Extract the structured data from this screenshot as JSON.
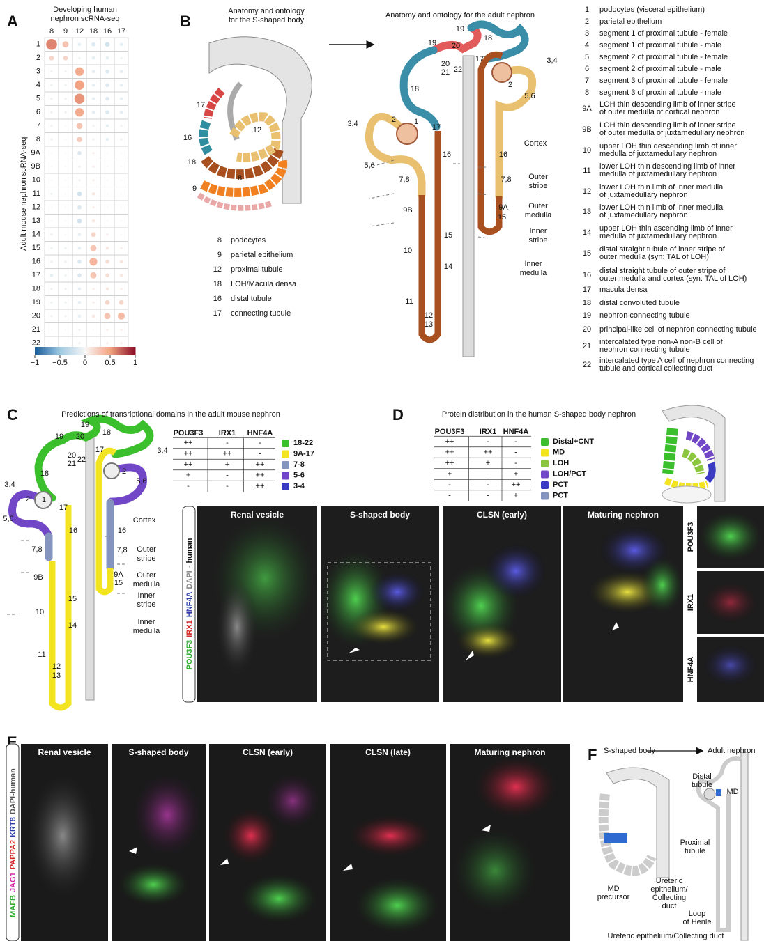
{
  "chart_data": {
    "type": "dot_matrix",
    "title": [
      "Developing human",
      "nephron scRNA-seq"
    ],
    "y_label": "Adult mouse nephron scRNA-seq",
    "columns": [
      "8",
      "9",
      "12",
      "18",
      "16",
      "17"
    ],
    "rows": [
      "1",
      "2",
      "3",
      "4",
      "5",
      "6",
      "7",
      "8",
      "9A",
      "9B",
      "10",
      "11",
      "12",
      "13",
      "14",
      "15",
      "16",
      "17",
      "18",
      "19",
      "20",
      "21",
      "22"
    ],
    "values": [
      [
        0.6,
        0.3,
        -0.1,
        -0.15,
        -0.2,
        -0.1
      ],
      [
        0.2,
        0.2,
        -0.05,
        -0.1,
        -0.1,
        -0.05
      ],
      [
        -0.05,
        -0.05,
        0.45,
        -0.1,
        -0.15,
        -0.1
      ],
      [
        -0.05,
        -0.05,
        0.5,
        -0.1,
        -0.15,
        -0.1
      ],
      [
        -0.05,
        -0.05,
        0.55,
        -0.1,
        -0.15,
        -0.1
      ],
      [
        -0.05,
        -0.05,
        0.45,
        -0.1,
        -0.15,
        -0.1
      ],
      [
        -0.05,
        0,
        0.3,
        -0.05,
        -0.1,
        -0.05
      ],
      [
        -0.05,
        0,
        0.25,
        -0.05,
        -0.1,
        -0.05
      ],
      [
        0,
        0,
        -0.15,
        0.05,
        0,
        0
      ],
      [
        0,
        0,
        -0.05,
        0.05,
        0,
        0
      ],
      [
        0,
        0,
        -0.05,
        0.05,
        0,
        0
      ],
      [
        -0.05,
        0,
        -0.2,
        0.1,
        0,
        0
      ],
      [
        0,
        0,
        -0.15,
        0.05,
        0,
        0
      ],
      [
        0,
        0,
        -0.2,
        0.1,
        0,
        0
      ],
      [
        -0.05,
        0,
        -0.1,
        0.2,
        0.05,
        0
      ],
      [
        -0.05,
        -0.05,
        -0.1,
        0.3,
        0.1,
        0.05
      ],
      [
        -0.05,
        -0.05,
        -0.15,
        0.4,
        0.15,
        0.1
      ],
      [
        -0.1,
        -0.05,
        -0.15,
        0.3,
        0.15,
        0.1
      ],
      [
        -0.05,
        -0.05,
        -0.1,
        0.05,
        0.1,
        0.05
      ],
      [
        -0.05,
        -0.05,
        -0.1,
        0.05,
        0.2,
        0.2
      ],
      [
        -0.05,
        -0.05,
        -0.1,
        0.1,
        0.3,
        0.35
      ],
      [
        0,
        0,
        -0.05,
        0,
        0.05,
        0.05
      ],
      [
        0,
        0,
        -0.05,
        0,
        0.05,
        0.05
      ]
    ],
    "colors": [
      "#1d5796",
      "#9ec8e0",
      "#f7f7f7",
      "#f2a384",
      "#8c0b25"
    ],
    "clim": [
      -1,
      1
    ],
    "cticks": [
      {
        "value": -1,
        "label": "−1"
      },
      {
        "value": -0.5,
        "label": "−0.5"
      },
      0,
      0.5,
      1
    ]
  },
  "panel_a": {
    "letter": "A"
  },
  "panel_b": {
    "letter": "B",
    "s_title": [
      "Anatomy and ontology",
      "for the S-shaped body"
    ],
    "adult_title": "Anatomy and ontology for the adult nephron",
    "s_labels": [
      "17",
      "16",
      "12",
      "18",
      "8",
      "9"
    ],
    "legend": [
      {
        "number": "8",
        "label": "podocytes"
      },
      {
        "number": "9",
        "label": "parietal epithelium"
      },
      {
        "number": "12",
        "label": "proximal tubule"
      },
      {
        "number": "18",
        "label": "LOH/Macula densa"
      },
      {
        "number": "16",
        "label": "distal tubule"
      },
      {
        "number": "17",
        "label": "connecting tubule"
      }
    ],
    "diagram_labels": [
      "19",
      "18",
      "20",
      "19",
      "20",
      "21",
      "22",
      "17",
      "3,4",
      "2",
      "5,6",
      "18",
      "3,4",
      "2",
      "1",
      "17",
      "5,6",
      "16",
      "16",
      "7,8",
      "7,8",
      "9B",
      "9A",
      "15",
      "15",
      "10",
      "14",
      "11",
      "12",
      "13"
    ],
    "zones": [
      [
        "Cortex"
      ],
      [
        "Outer",
        "stripe"
      ],
      [
        "Outer",
        "medulla"
      ],
      [
        "Inner",
        "stripe"
      ],
      [
        "Inner",
        "medulla"
      ]
    ],
    "ontology": [
      {
        "number": "1",
        "lines": [
          "podocytes (visceral epithelium)"
        ]
      },
      {
        "number": "2",
        "lines": [
          "parietal epithelium"
        ]
      },
      {
        "number": "3",
        "lines": [
          "segment 1 of proximal tubule - female"
        ]
      },
      {
        "number": "4",
        "lines": [
          "segment 1 of proximal tubule - male"
        ]
      },
      {
        "number": "5",
        "lines": [
          "segment 2 of proximal tubule - female"
        ]
      },
      {
        "number": "6",
        "lines": [
          "segment 2 of proximal tubule - male"
        ]
      },
      {
        "number": "7",
        "lines": [
          "segment 3 of proximal tubule - female"
        ]
      },
      {
        "number": "8",
        "lines": [
          "segment 3 of proximal tubule - male"
        ]
      },
      {
        "number": "9A",
        "lines": [
          "LOH thin descending limb of inner stripe",
          "of outer medulla of cortical nephron"
        ]
      },
      {
        "number": "9B",
        "lines": [
          "LOH thin descending limb of inner stripe",
          "of outer medulla of juxtamedullary nephron"
        ]
      },
      {
        "number": "10",
        "lines": [
          "upper LOH thin descending limb of inner",
          "medulla of juxtamedullary nephron"
        ]
      },
      {
        "number": "11",
        "lines": [
          "lower LOH thin descending limb of inner",
          "medulla of juxtamedullary nephron"
        ]
      },
      {
        "number": "12",
        "lines": [
          "lower LOH thin limb of inner medulla",
          "of  juxtamedullary nephron"
        ]
      },
      {
        "number": "13",
        "lines": [
          "lower LOH thin limb of inner medulla",
          "of juxtamedullary nephron"
        ]
      },
      {
        "number": "14",
        "lines": [
          "upper LOH thin ascending limb of inner",
          "medulla of juxtamedullary nephron"
        ]
      },
      {
        "number": "15",
        "lines": [
          "distal straight tubule of inner stripe of",
          "outer medulla (syn: TAL of LOH)"
        ]
      },
      {
        "number": "16",
        "lines": [
          "distal straight tubule of outer stripe of",
          "outer medulla and cortex (syn: TAL of LOH)"
        ]
      },
      {
        "number": "17",
        "lines": [
          "macula densa"
        ]
      },
      {
        "number": "18",
        "lines": [
          "distal convoluted tubule"
        ]
      },
      {
        "number": "19",
        "lines": [
          "nephron connecting tubule"
        ]
      },
      {
        "number": "20",
        "lines": [
          "principal-like cell of nephron connecting tubule"
        ]
      },
      {
        "number": "21",
        "lines": [
          "intercalated type non-A non-B cell of",
          "nephron connecting tubule"
        ]
      },
      {
        "number": "22",
        "lines": [
          "intercalated type A cell of nephron connecting",
          "tubule and cortical collecting duct"
        ]
      }
    ]
  },
  "panel_c": {
    "letter": "C",
    "title": "Predictions of transriptional domains in the adult mouse nephron",
    "genes": [
      {
        "name": "POU3F3",
        "color": "#2fae2f"
      },
      {
        "name": "IRX1",
        "color": "#d42a2a"
      },
      {
        "name": "HNF4A",
        "color": "#2c3aa8"
      }
    ],
    "rows": [
      {
        "label": "18-22",
        "color": "#3cbf2c",
        "marks": [
          "++",
          "-",
          "-"
        ]
      },
      {
        "label": "9A-17",
        "color": "#f2e421",
        "label_color": "#c9b800",
        "marks": [
          "++",
          "++",
          "-"
        ]
      },
      {
        "label": "7-8",
        "color": "#8494bf",
        "marks": [
          "++",
          "+",
          "++"
        ]
      },
      {
        "label": "5-6",
        "color": "#7247c7",
        "marks": [
          "+",
          "-",
          "++"
        ]
      },
      {
        "label": "3-4",
        "color": "#3a3ac2",
        "marks": [
          "-",
          "-",
          "++"
        ]
      }
    ],
    "diagram_labels": [
      "19",
      "18",
      "20",
      "19",
      "20",
      "21",
      "22",
      "17",
      "3,4",
      "2",
      "5,6",
      "18",
      "3,4",
      "2",
      "1",
      "17",
      "5,6",
      "16",
      "16",
      "7,8",
      "7,8",
      "9B",
      "9A",
      "15",
      "15",
      "10",
      "14",
      "11",
      "12",
      "13"
    ],
    "zones": [
      [
        "Cortex"
      ],
      [
        "Outer",
        "stripe"
      ],
      [
        "Outer",
        "medulla"
      ],
      [
        "Inner",
        "stripe"
      ],
      [
        "Inner",
        "medulla"
      ]
    ]
  },
  "panel_d": {
    "letter": "D",
    "title": "Protein distribution in the human S-shaped body nephron",
    "genes": [
      {
        "name": "POU3F3",
        "color": "#2fae2f"
      },
      {
        "name": "IRX1",
        "color": "#d42a2a"
      },
      {
        "name": "HNF4A",
        "color": "#2c3aa8"
      }
    ],
    "rows": [
      {
        "label": "Distal+CNT",
        "color": "#3cbf2c",
        "marks": [
          "++",
          "-",
          "-"
        ]
      },
      {
        "label": "MD",
        "color": "#f2e421",
        "label_color": "#c9b800",
        "marks": [
          "++",
          "++",
          "-"
        ]
      },
      {
        "label": "LOH",
        "color": "#8cc63f",
        "label_color": "#6fae2a",
        "marks": [
          "++",
          "+",
          "-"
        ]
      },
      {
        "label": "LOH/PCT",
        "color": "#7247c7",
        "marks": [
          "+",
          "-",
          "+"
        ]
      },
      {
        "label": "PCT",
        "color": "#3a3ac2",
        "marks": [
          "-",
          "-",
          "++"
        ]
      },
      {
        "label": "PCT",
        "color": "#8494bf",
        "marks": [
          "-",
          "-",
          "+"
        ]
      }
    ],
    "stain_label": [
      {
        "text": "POU3F3",
        "color": "#2fae2f"
      },
      {
        "text": "IRX1",
        "color": "#d42a2a"
      },
      {
        "text": "HNF4A",
        "color": "#2c3aa8"
      },
      {
        "text": "DAPI",
        "color": "#888"
      },
      {
        "text": "- human",
        "color": "#111"
      }
    ],
    "images": [
      "Renal vesicle",
      "S-shaped body",
      "CLSN (early)",
      "Maturing nephron"
    ],
    "side": [
      {
        "text": "POU3F3",
        "color": "#2fae2f"
      },
      {
        "text": "IRX1",
        "color": "#d42a2a"
      },
      {
        "text": "HNF4A",
        "color": "#2c3aa8"
      }
    ]
  },
  "panel_e": {
    "letter": "E",
    "stain_label": [
      {
        "text": "MAFB",
        "color": "#2fae2f"
      },
      {
        "text": "JAG1",
        "color": "#d42aa8"
      },
      {
        "text": "PAPPA2",
        "color": "#d42a2a"
      },
      {
        "text": "KRT8",
        "color": "#2c3aa8"
      },
      {
        "text": "DAPI-human",
        "color": "#555"
      }
    ],
    "images": [
      "Renal vesicle",
      "S-shaped body",
      "CLSN (early)",
      "CLSN (late)",
      "Maturing nephron"
    ]
  },
  "panel_f": {
    "letter": "F",
    "from": "S-shaped body",
    "to": "Adult nephron",
    "labels": [
      [
        "Distal",
        "tubule"
      ],
      [
        "MD"
      ],
      [
        "Proximal",
        "tubule"
      ],
      [
        "MD",
        "precursor"
      ],
      [
        "Ureteric",
        "epithelium/",
        "Collecting",
        "duct"
      ],
      [
        "Loop",
        "of Henle"
      ],
      [
        "Ureteric epithelium/Collecting duct"
      ]
    ]
  }
}
